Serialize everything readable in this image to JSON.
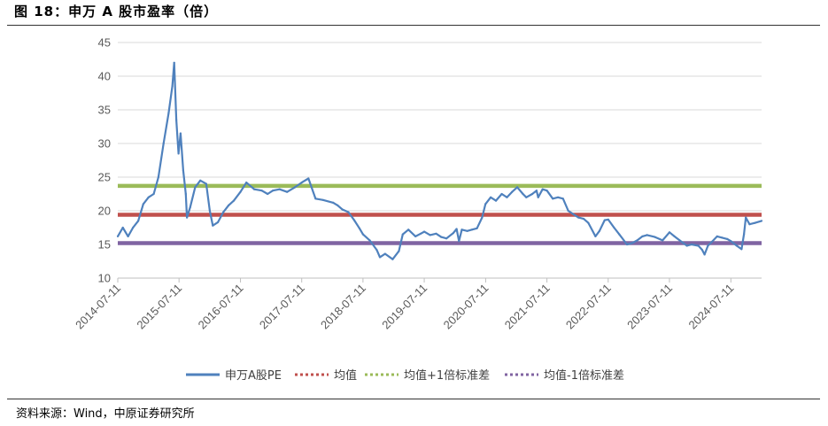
{
  "figure": {
    "title": "图 18：申万 A 股市盈率（倍）",
    "source": "资料来源：Wind，中原证券研究所"
  },
  "chart_data": {
    "type": "line",
    "ylim": [
      10,
      45
    ],
    "yticks": [
      10,
      15,
      20,
      25,
      30,
      35,
      40,
      45
    ],
    "ytick_labels": [
      "10",
      "15",
      "20",
      "25",
      "30",
      "35",
      "40",
      "45"
    ],
    "xlim": [
      "2014-07-11",
      "2025-01-10"
    ],
    "xtick_labels": [
      "2014-07-11",
      "2015-07-11",
      "2016-07-11",
      "2017-07-11",
      "2018-07-11",
      "2019-07-11",
      "2020-07-11",
      "2021-07-11",
      "2022-07-11",
      "2023-07-11",
      "2024-07-11"
    ],
    "grid": true,
    "legend_position": "bottom",
    "series": [
      {
        "name": "申万A股PE",
        "color": "#4f81bd",
        "style": "solid",
        "x": [
          "2014-07-11",
          "2014-08-10",
          "2014-09-10",
          "2014-10-10",
          "2014-11-10",
          "2014-12-10",
          "2015-01-10",
          "2015-02-10",
          "2015-03-10",
          "2015-04-10",
          "2015-05-10",
          "2015-06-01",
          "2015-06-12",
          "2015-06-25",
          "2015-07-08",
          "2015-07-20",
          "2015-08-05",
          "2015-08-20",
          "2015-08-27",
          "2015-09-15",
          "2015-10-15",
          "2015-11-15",
          "2015-12-20",
          "2016-01-10",
          "2016-01-28",
          "2016-02-28",
          "2016-03-31",
          "2016-05-01",
          "2016-06-01",
          "2016-07-11",
          "2016-08-15",
          "2016-10-01",
          "2016-11-15",
          "2016-12-20",
          "2017-01-20",
          "2017-03-01",
          "2017-04-15",
          "2017-06-01",
          "2017-07-11",
          "2017-08-20",
          "2017-10-01",
          "2017-11-15",
          "2018-01-15",
          "2018-02-10",
          "2018-03-10",
          "2018-04-15",
          "2018-05-20",
          "2018-06-20",
          "2018-07-11",
          "2018-08-20",
          "2018-10-01",
          "2018-10-20",
          "2018-11-20",
          "2019-01-04",
          "2019-02-10",
          "2019-03-05",
          "2019-04-08",
          "2019-05-20",
          "2019-06-20",
          "2019-07-11",
          "2019-08-15",
          "2019-09-20",
          "2019-10-20",
          "2019-11-20",
          "2019-12-31",
          "2020-01-20",
          "2020-02-03",
          "2020-02-20",
          "2020-03-23",
          "2020-04-20",
          "2020-05-20",
          "2020-06-20",
          "2020-07-10",
          "2020-08-10",
          "2020-09-10",
          "2020-10-15",
          "2020-11-15",
          "2020-12-15",
          "2021-01-15",
          "2021-02-18",
          "2021-03-10",
          "2021-04-15",
          "2021-05-10",
          "2021-05-20",
          "2021-06-15",
          "2021-07-11",
          "2021-08-15",
          "2021-09-15",
          "2021-10-15",
          "2021-11-15",
          "2021-12-15",
          "2022-01-15",
          "2022-02-15",
          "2022-03-15",
          "2022-04-26",
          "2022-05-20",
          "2022-06-20",
          "2022-07-11",
          "2022-08-15",
          "2022-09-15",
          "2022-10-31",
          "2022-11-30",
          "2022-12-31",
          "2023-01-31",
          "2023-02-28",
          "2023-04-15",
          "2023-05-31",
          "2023-07-11",
          "2023-08-10",
          "2023-09-10",
          "2023-10-23",
          "2023-11-20",
          "2023-12-31",
          "2024-01-22",
          "2024-02-05",
          "2024-02-25",
          "2024-03-20",
          "2024-04-20",
          "2024-05-20",
          "2024-06-20",
          "2024-07-11",
          "2024-08-15",
          "2024-09-13",
          "2024-09-27",
          "2024-10-08",
          "2024-10-30",
          "2024-12-01",
          "2025-01-10"
        ],
        "values": [
          16.2,
          17.5,
          16.2,
          17.5,
          18.5,
          21.0,
          22.0,
          22.5,
          25.0,
          30.0,
          34.5,
          38.5,
          42.0,
          33.5,
          28.5,
          31.5,
          26.0,
          22.5,
          19.0,
          20.5,
          23.5,
          24.5,
          24.0,
          20.0,
          17.8,
          18.3,
          19.8,
          20.8,
          21.5,
          22.8,
          24.2,
          23.2,
          23.0,
          22.5,
          23.0,
          23.2,
          22.8,
          23.5,
          24.2,
          24.8,
          21.8,
          21.6,
          21.2,
          20.8,
          20.2,
          19.8,
          18.6,
          17.4,
          16.5,
          15.6,
          14.2,
          13.1,
          13.6,
          12.8,
          14.0,
          16.5,
          17.2,
          16.2,
          16.6,
          16.9,
          16.4,
          16.6,
          16.1,
          15.9,
          16.7,
          17.3,
          15.5,
          17.2,
          17.0,
          17.2,
          17.4,
          19.0,
          21.0,
          22.0,
          21.5,
          22.5,
          22.0,
          22.8,
          23.5,
          22.5,
          22.0,
          22.5,
          23.0,
          22.0,
          23.2,
          23.0,
          21.8,
          22.0,
          21.8,
          20.0,
          19.5,
          19.0,
          18.8,
          18.2,
          16.2,
          17.0,
          18.6,
          18.7,
          17.5,
          16.5,
          15.0,
          15.2,
          15.6,
          16.2,
          16.4,
          16.1,
          15.6,
          16.8,
          16.2,
          15.6,
          14.8,
          15.0,
          14.8,
          14.2,
          13.5,
          14.8,
          15.4,
          16.2,
          16.0,
          15.8,
          15.5,
          14.8,
          14.3,
          16.5,
          19.0,
          18.0,
          18.2,
          18.5
        ]
      },
      {
        "name": "均值",
        "color": "#c0504d",
        "style": "dotted",
        "constant": 19.4
      },
      {
        "name": "均值+1倍标准差",
        "color": "#9bbb59",
        "style": "dotted",
        "constant": 23.7
      },
      {
        "name": "均值-1倍标准差",
        "color": "#8064a2",
        "style": "dotted",
        "constant": 15.2
      }
    ]
  }
}
